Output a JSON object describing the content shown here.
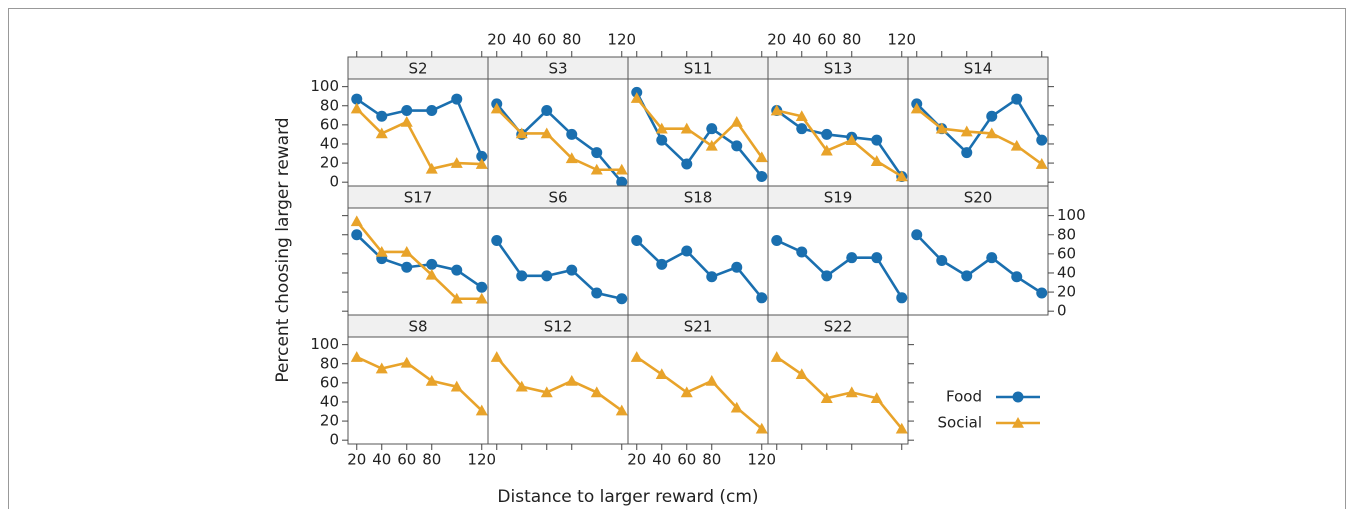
{
  "x_label": "Distance to larger reward (cm)",
  "y_label": "Percent choosing larger reward",
  "chart_data": [
    {
      "type": "line",
      "title": "S2",
      "x": [
        20,
        40,
        60,
        80,
        100,
        120
      ],
      "xlim": [
        13,
        125
      ],
      "ylim": [
        -4,
        108
      ],
      "xticks": [
        20,
        40,
        60,
        80,
        120
      ],
      "yticks": [
        0,
        20,
        40,
        60,
        80,
        100
      ],
      "series": [
        {
          "name": "Food",
          "color": "#1a6faf",
          "values": [
            87,
            69,
            75,
            75,
            87,
            27
          ]
        },
        {
          "name": "Social",
          "color": "#e8a32a",
          "values": [
            77,
            51,
            63,
            14,
            20,
            19
          ]
        }
      ]
    },
    {
      "type": "line",
      "title": "S3",
      "x": [
        20,
        40,
        60,
        80,
        100,
        120
      ],
      "xlim": [
        13,
        125
      ],
      "ylim": [
        -4,
        108
      ],
      "xticks": [
        20,
        40,
        60,
        80,
        120
      ],
      "yticks": [
        0,
        20,
        40,
        60,
        80,
        100
      ],
      "series": [
        {
          "name": "Food",
          "color": "#1a6faf",
          "values": [
            82,
            50,
            75,
            50,
            31,
            0
          ]
        },
        {
          "name": "Social",
          "color": "#e8a32a",
          "values": [
            77,
            51,
            51,
            25,
            13,
            13
          ]
        }
      ]
    },
    {
      "type": "line",
      "title": "S11",
      "x": [
        20,
        40,
        60,
        80,
        100,
        120
      ],
      "xlim": [
        13,
        125
      ],
      "ylim": [
        -4,
        108
      ],
      "xticks": [
        20,
        40,
        60,
        80,
        120
      ],
      "yticks": [
        0,
        20,
        40,
        60,
        80,
        100
      ],
      "series": [
        {
          "name": "Food",
          "color": "#1a6faf",
          "values": [
            94,
            44,
            19,
            56,
            38,
            6
          ]
        },
        {
          "name": "Social",
          "color": "#e8a32a",
          "values": [
            88,
            56,
            56,
            38,
            63,
            26
          ]
        }
      ]
    },
    {
      "type": "line",
      "title": "S13",
      "x": [
        20,
        40,
        60,
        80,
        100,
        120
      ],
      "xlim": [
        13,
        125
      ],
      "ylim": [
        -4,
        108
      ],
      "xticks": [
        20,
        40,
        60,
        80,
        120
      ],
      "yticks": [
        0,
        20,
        40,
        60,
        80,
        100
      ],
      "series": [
        {
          "name": "Food",
          "color": "#1a6faf",
          "values": [
            75,
            56,
            50,
            47,
            44,
            6
          ]
        },
        {
          "name": "Social",
          "color": "#e8a32a",
          "values": [
            75,
            69,
            33,
            44,
            22,
            6
          ]
        }
      ]
    },
    {
      "type": "line",
      "title": "S14",
      "x": [
        20,
        40,
        60,
        80,
        100,
        120
      ],
      "xlim": [
        13,
        125
      ],
      "ylim": [
        -4,
        108
      ],
      "xticks": [
        20,
        40,
        60,
        80,
        120
      ],
      "yticks": [
        0,
        20,
        40,
        60,
        80,
        100
      ],
      "series": [
        {
          "name": "Food",
          "color": "#1a6faf",
          "values": [
            82,
            56,
            31,
            69,
            87,
            44
          ]
        },
        {
          "name": "Social",
          "color": "#e8a32a",
          "values": [
            77,
            56,
            53,
            51,
            38,
            19
          ]
        }
      ]
    },
    {
      "type": "line",
      "title": "S17",
      "x": [
        20,
        40,
        60,
        80,
        100,
        120
      ],
      "xlim": [
        13,
        125
      ],
      "ylim": [
        -4,
        108
      ],
      "xticks": [
        20,
        40,
        60,
        80,
        120
      ],
      "yticks": [
        0,
        20,
        40,
        60,
        80,
        100
      ],
      "series": [
        {
          "name": "Food",
          "color": "#1a6faf",
          "values": [
            80,
            55,
            46,
            49,
            43,
            25
          ]
        },
        {
          "name": "Social",
          "color": "#e8a32a",
          "values": [
            94,
            62,
            62,
            38,
            13,
            13
          ]
        }
      ]
    },
    {
      "type": "line",
      "title": "S6",
      "x": [
        20,
        40,
        60,
        80,
        100,
        120
      ],
      "xlim": [
        13,
        125
      ],
      "ylim": [
        -4,
        108
      ],
      "xticks": [
        20,
        40,
        60,
        80,
        120
      ],
      "yticks": [
        0,
        20,
        40,
        60,
        80,
        100
      ],
      "series": [
        {
          "name": "Food",
          "color": "#1a6faf",
          "values": [
            74,
            37,
            37,
            43,
            19,
            13
          ]
        }
      ]
    },
    {
      "type": "line",
      "title": "S18",
      "x": [
        20,
        40,
        60,
        80,
        100,
        120
      ],
      "xlim": [
        13,
        125
      ],
      "ylim": [
        -4,
        108
      ],
      "xticks": [
        20,
        40,
        60,
        80,
        120
      ],
      "yticks": [
        0,
        20,
        40,
        60,
        80,
        100
      ],
      "series": [
        {
          "name": "Food",
          "color": "#1a6faf",
          "values": [
            74,
            49,
            63,
            36,
            46,
            14
          ]
        }
      ]
    },
    {
      "type": "line",
      "title": "S19",
      "x": [
        20,
        40,
        60,
        80,
        100,
        120
      ],
      "xlim": [
        13,
        125
      ],
      "ylim": [
        -4,
        108
      ],
      "xticks": [
        20,
        40,
        60,
        80,
        120
      ],
      "yticks": [
        0,
        20,
        40,
        60,
        80,
        100
      ],
      "series": [
        {
          "name": "Food",
          "color": "#1a6faf",
          "values": [
            74,
            62,
            37,
            56,
            56,
            14
          ]
        }
      ]
    },
    {
      "type": "line",
      "title": "S20",
      "x": [
        20,
        40,
        60,
        80,
        100,
        120
      ],
      "xlim": [
        13,
        125
      ],
      "ylim": [
        -4,
        108
      ],
      "xticks": [
        20,
        40,
        60,
        80,
        120
      ],
      "yticks": [
        0,
        20,
        40,
        60,
        80,
        100
      ],
      "series": [
        {
          "name": "Food",
          "color": "#1a6faf",
          "values": [
            80,
            53,
            37,
            56,
            36,
            19
          ]
        }
      ]
    },
    {
      "type": "line",
      "title": "S8",
      "x": [
        20,
        40,
        60,
        80,
        100,
        120
      ],
      "xlim": [
        13,
        125
      ],
      "ylim": [
        -4,
        108
      ],
      "xticks": [
        20,
        40,
        60,
        80,
        120
      ],
      "yticks": [
        0,
        20,
        40,
        60,
        80,
        100
      ],
      "series": [
        {
          "name": "Social",
          "color": "#e8a32a",
          "values": [
            87,
            75,
            81,
            62,
            56,
            31
          ]
        }
      ]
    },
    {
      "type": "line",
      "title": "S12",
      "x": [
        20,
        40,
        60,
        80,
        100,
        120
      ],
      "xlim": [
        13,
        125
      ],
      "ylim": [
        -4,
        108
      ],
      "xticks": [
        20,
        40,
        60,
        80,
        120
      ],
      "yticks": [
        0,
        20,
        40,
        60,
        80,
        100
      ],
      "series": [
        {
          "name": "Social",
          "color": "#e8a32a",
          "values": [
            87,
            56,
            50,
            62,
            50,
            31
          ]
        }
      ]
    },
    {
      "type": "line",
      "title": "S21",
      "x": [
        20,
        40,
        60,
        80,
        100,
        120
      ],
      "xlim": [
        13,
        125
      ],
      "ylim": [
        -4,
        108
      ],
      "xticks": [
        20,
        40,
        60,
        80,
        120
      ],
      "yticks": [
        0,
        20,
        40,
        60,
        80,
        100
      ],
      "series": [
        {
          "name": "Social",
          "color": "#e8a32a",
          "values": [
            87,
            69,
            50,
            62,
            34,
            12
          ]
        }
      ]
    },
    {
      "type": "line",
      "title": "S22",
      "x": [
        20,
        40,
        60,
        80,
        100,
        120
      ],
      "xlim": [
        13,
        125
      ],
      "ylim": [
        -4,
        108
      ],
      "xticks": [
        20,
        40,
        60,
        80,
        120
      ],
      "yticks": [
        0,
        20,
        40,
        60,
        80,
        100
      ],
      "series": [
        {
          "name": "Social",
          "color": "#e8a32a",
          "values": [
            87,
            69,
            44,
            50,
            44,
            12
          ]
        }
      ]
    }
  ]
}
